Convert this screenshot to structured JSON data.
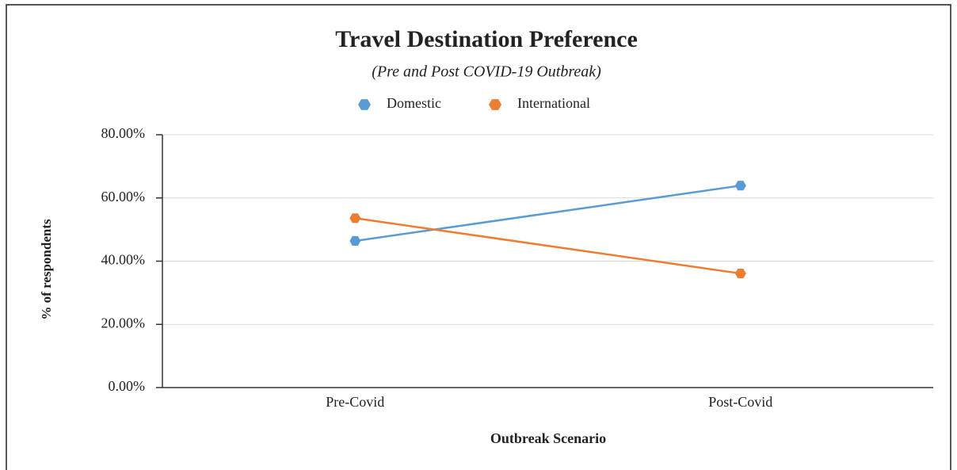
{
  "chart_data": {
    "type": "line",
    "title": "Travel Destination Preference",
    "subtitle": "(Pre and Post COVID-19 Outbreak)",
    "x_label": "Outbreak Scenario",
    "y_label": "% of respondents",
    "categories": [
      "Pre-Covid",
      "Post-Covid"
    ],
    "series": [
      {
        "name": "Domestic",
        "color": "#5b9bd5",
        "values": [
          46.4,
          63.9
        ]
      },
      {
        "name": "International",
        "color": "#ed7d31",
        "values": [
          53.6,
          36.1
        ]
      }
    ],
    "ylim": [
      0,
      80
    ],
    "yticks": [
      {
        "value": 0,
        "label": "0.00%"
      },
      {
        "value": 20,
        "label": "20.00%"
      },
      {
        "value": 40,
        "label": "40.00%"
      },
      {
        "value": 60,
        "label": "60.00%"
      },
      {
        "value": 80,
        "label": "80.00%"
      }
    ],
    "grid": true,
    "legend": "top"
  }
}
